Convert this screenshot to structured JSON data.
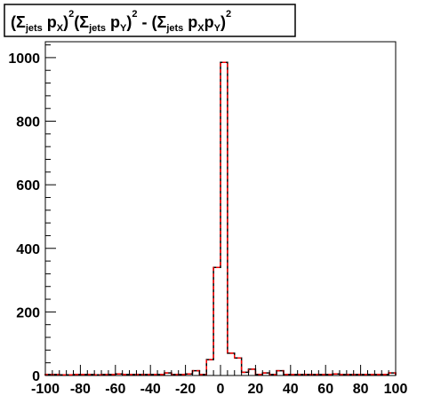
{
  "chart_data": {
    "type": "bar",
    "title": {
      "parts": [
        {
          "t": "(",
          "s": "n"
        },
        {
          "t": "Σ",
          "s": "n"
        },
        {
          "t": "jets",
          "s": "sub"
        },
        {
          "t": " p",
          "s": "n"
        },
        {
          "t": "X",
          "s": "sub"
        },
        {
          "t": ")",
          "s": "n"
        },
        {
          "t": "2",
          "s": "sup"
        },
        {
          "t": "(",
          "s": "n"
        },
        {
          "t": "Σ",
          "s": "n"
        },
        {
          "t": "jets",
          "s": "sub"
        },
        {
          "t": " p",
          "s": "n"
        },
        {
          "t": "Y",
          "s": "sub"
        },
        {
          "t": ")",
          "s": "n"
        },
        {
          "t": "2",
          "s": "sup"
        },
        {
          "t": " - (",
          "s": "n"
        },
        {
          "t": "Σ",
          "s": "n"
        },
        {
          "t": "jets",
          "s": "sub"
        },
        {
          "t": " p",
          "s": "n"
        },
        {
          "t": "X",
          "s": "sub"
        },
        {
          "t": "p",
          "s": "n"
        },
        {
          "t": "Y",
          "s": "sub"
        },
        {
          "t": ")",
          "s": "n"
        },
        {
          "t": "2",
          "s": "sup"
        }
      ]
    },
    "xlabel": "",
    "ylabel": "",
    "xlim": [
      -100,
      100
    ],
    "ylim": [
      0,
      1050
    ],
    "x_ticks": [
      -100,
      -80,
      -60,
      -40,
      -20,
      0,
      20,
      40,
      60,
      80,
      100
    ],
    "y_ticks": [
      0,
      200,
      400,
      600,
      800,
      1000
    ],
    "grid": false,
    "legend": "none",
    "bin_edges": [
      -100,
      -96,
      -92,
      -88,
      -84,
      -80,
      -76,
      -72,
      -68,
      -64,
      -60,
      -56,
      -52,
      -48,
      -44,
      -40,
      -36,
      -32,
      -28,
      -24,
      -20,
      -16,
      -12,
      -8,
      -4,
      0,
      4,
      8,
      12,
      16,
      20,
      24,
      28,
      32,
      36,
      40,
      44,
      48,
      52,
      56,
      60,
      64,
      68,
      72,
      76,
      80,
      84,
      88,
      92,
      96,
      100
    ],
    "series": [
      {
        "style": "black-solid",
        "color": "#000000",
        "values": [
          3,
          3,
          2,
          2,
          3,
          3,
          3,
          2,
          3,
          3,
          5,
          3,
          3,
          3,
          3,
          3,
          3,
          8,
          3,
          3,
          5,
          15,
          3,
          50,
          340,
          985,
          70,
          55,
          10,
          20,
          3,
          8,
          3,
          15,
          3,
          3,
          3,
          3,
          3,
          3,
          3,
          5,
          3,
          3,
          3,
          3,
          3,
          3,
          3,
          8
        ]
      },
      {
        "style": "red-dashed",
        "color": "#ff0000",
        "values": [
          3,
          3,
          2,
          2,
          3,
          3,
          3,
          2,
          3,
          3,
          5,
          3,
          3,
          3,
          3,
          3,
          3,
          8,
          3,
          3,
          5,
          15,
          3,
          50,
          340,
          985,
          70,
          55,
          10,
          20,
          3,
          8,
          3,
          15,
          3,
          3,
          3,
          3,
          3,
          3,
          3,
          5,
          3,
          3,
          3,
          3,
          3,
          3,
          3,
          8
        ]
      }
    ]
  }
}
